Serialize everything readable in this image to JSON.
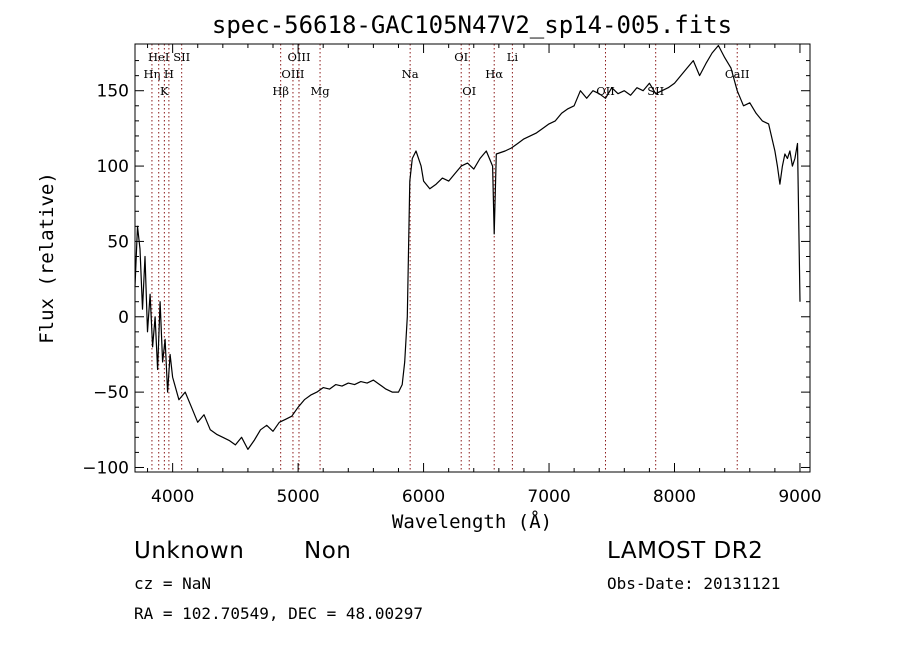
{
  "chart_data": {
    "type": "line",
    "title": "spec-56618-GAC105N47V2_sp14-005.fits",
    "xlabel": "Wavelength (Å)",
    "ylabel": "Flux (relative)",
    "xlim": [
      3700,
      9080
    ],
    "ylim": [
      -103,
      181
    ],
    "xticks": [
      4000,
      5000,
      6000,
      7000,
      8000,
      9000
    ],
    "xtick_labels": [
      "4000",
      "5000",
      "6000",
      "7000",
      "8000",
      "9000"
    ],
    "yticks": [
      -100,
      -50,
      0,
      50,
      100,
      150
    ],
    "ytick_labels": [
      "−100",
      "−50",
      "0",
      "50",
      "100",
      "150"
    ],
    "grid": false,
    "line_color": "#000000",
    "marker_color": "#8b1a1a",
    "series": [
      {
        "x": [
          3700,
          3720,
          3740,
          3760,
          3780,
          3800,
          3820,
          3840,
          3860,
          3880,
          3900,
          3920,
          3940,
          3960,
          3980,
          4000,
          4050,
          4100,
          4150,
          4200,
          4250,
          4300,
          4350,
          4400,
          4450,
          4500,
          4550,
          4600,
          4650,
          4700,
          4750,
          4800,
          4850,
          4900,
          4950,
          5000,
          5050,
          5100,
          5150,
          5200,
          5250,
          5300,
          5350,
          5400,
          5450,
          5500,
          5550,
          5600,
          5650,
          5700,
          5750,
          5800,
          5830,
          5850,
          5870,
          5890,
          5910,
          5940,
          5980,
          6000,
          6050,
          6100,
          6150,
          6200,
          6250,
          6300,
          6350,
          6400,
          6450,
          6500,
          6550,
          6563,
          6580,
          6650,
          6700,
          6750,
          6800,
          6850,
          6900,
          6950,
          7000,
          7050,
          7100,
          7150,
          7200,
          7250,
          7300,
          7350,
          7400,
          7450,
          7500,
          7550,
          7600,
          7650,
          7700,
          7750,
          7800,
          7850,
          7900,
          7950,
          8000,
          8050,
          8100,
          8150,
          8200,
          8250,
          8300,
          8350,
          8400,
          8450,
          8500,
          8550,
          8600,
          8650,
          8700,
          8750,
          8800,
          8820,
          8840,
          8860,
          8880,
          8900,
          8920,
          8940,
          8960,
          8980,
          9000
        ],
        "y": [
          20,
          60,
          45,
          5,
          40,
          -10,
          15,
          -20,
          0,
          -35,
          10,
          -30,
          -15,
          -50,
          -25,
          -40,
          -55,
          -50,
          -60,
          -70,
          -65,
          -75,
          -78,
          -80,
          -82,
          -85,
          -80,
          -88,
          -82,
          -75,
          -72,
          -76,
          -70,
          -68,
          -66,
          -60,
          -55,
          -52,
          -50,
          -47,
          -48,
          -45,
          -46,
          -44,
          -45,
          -43,
          -44,
          -42,
          -45,
          -48,
          -50,
          -50,
          -45,
          -30,
          0,
          90,
          105,
          110,
          100,
          90,
          85,
          88,
          92,
          90,
          95,
          100,
          102,
          98,
          105,
          110,
          100,
          55,
          108,
          110,
          112,
          115,
          118,
          120,
          122,
          125,
          128,
          130,
          135,
          138,
          140,
          150,
          145,
          150,
          148,
          145,
          152,
          148,
          150,
          147,
          152,
          150,
          155,
          148,
          150,
          152,
          155,
          160,
          165,
          170,
          160,
          168,
          175,
          180,
          172,
          165,
          150,
          140,
          142,
          135,
          130,
          128,
          110,
          100,
          88,
          100,
          108,
          105,
          110,
          100,
          105,
          115,
          10
        ]
      }
    ],
    "line_markers": [
      {
        "wavelength": 3835,
        "label": "Hη",
        "row": 2
      },
      {
        "wavelength": 3889,
        "label": "HeI",
        "row": 1
      },
      {
        "wavelength": 3934,
        "label": "K",
        "row": 3
      },
      {
        "wavelength": 3970,
        "label": "H",
        "row": 2
      },
      {
        "wavelength": 4072,
        "label": "SII",
        "row": 1
      },
      {
        "wavelength": 4861,
        "label": "Hβ",
        "row": 3
      },
      {
        "wavelength": 4959,
        "label": "OIII",
        "row": 2
      },
      {
        "wavelength": 5007,
        "label": "OIII",
        "row": 1
      },
      {
        "wavelength": 5175,
        "label": "Mg",
        "row": 3
      },
      {
        "wavelength": 5893,
        "label": "Na",
        "row": 2
      },
      {
        "wavelength": 6300,
        "label": "OI",
        "row": 1
      },
      {
        "wavelength": 6364,
        "label": "OI",
        "row": 3
      },
      {
        "wavelength": 6563,
        "label": "Hα",
        "row": 2
      },
      {
        "wavelength": 6708,
        "label": "Li",
        "row": 1
      },
      {
        "wavelength": 7450,
        "label": "OII",
        "row": 3
      },
      {
        "wavelength": 7850,
        "label": "SII",
        "row": 3
      },
      {
        "wavelength": 8500,
        "label": "CaII",
        "row": 2
      }
    ]
  },
  "info": {
    "object_class": "Unknown",
    "object_subclass": "Non",
    "survey": "LAMOST DR2",
    "cz": "cz = NaN",
    "obs_date": "Obs-Date: 20131121",
    "coords": "RA = 102.70549, DEC =  48.00297"
  }
}
